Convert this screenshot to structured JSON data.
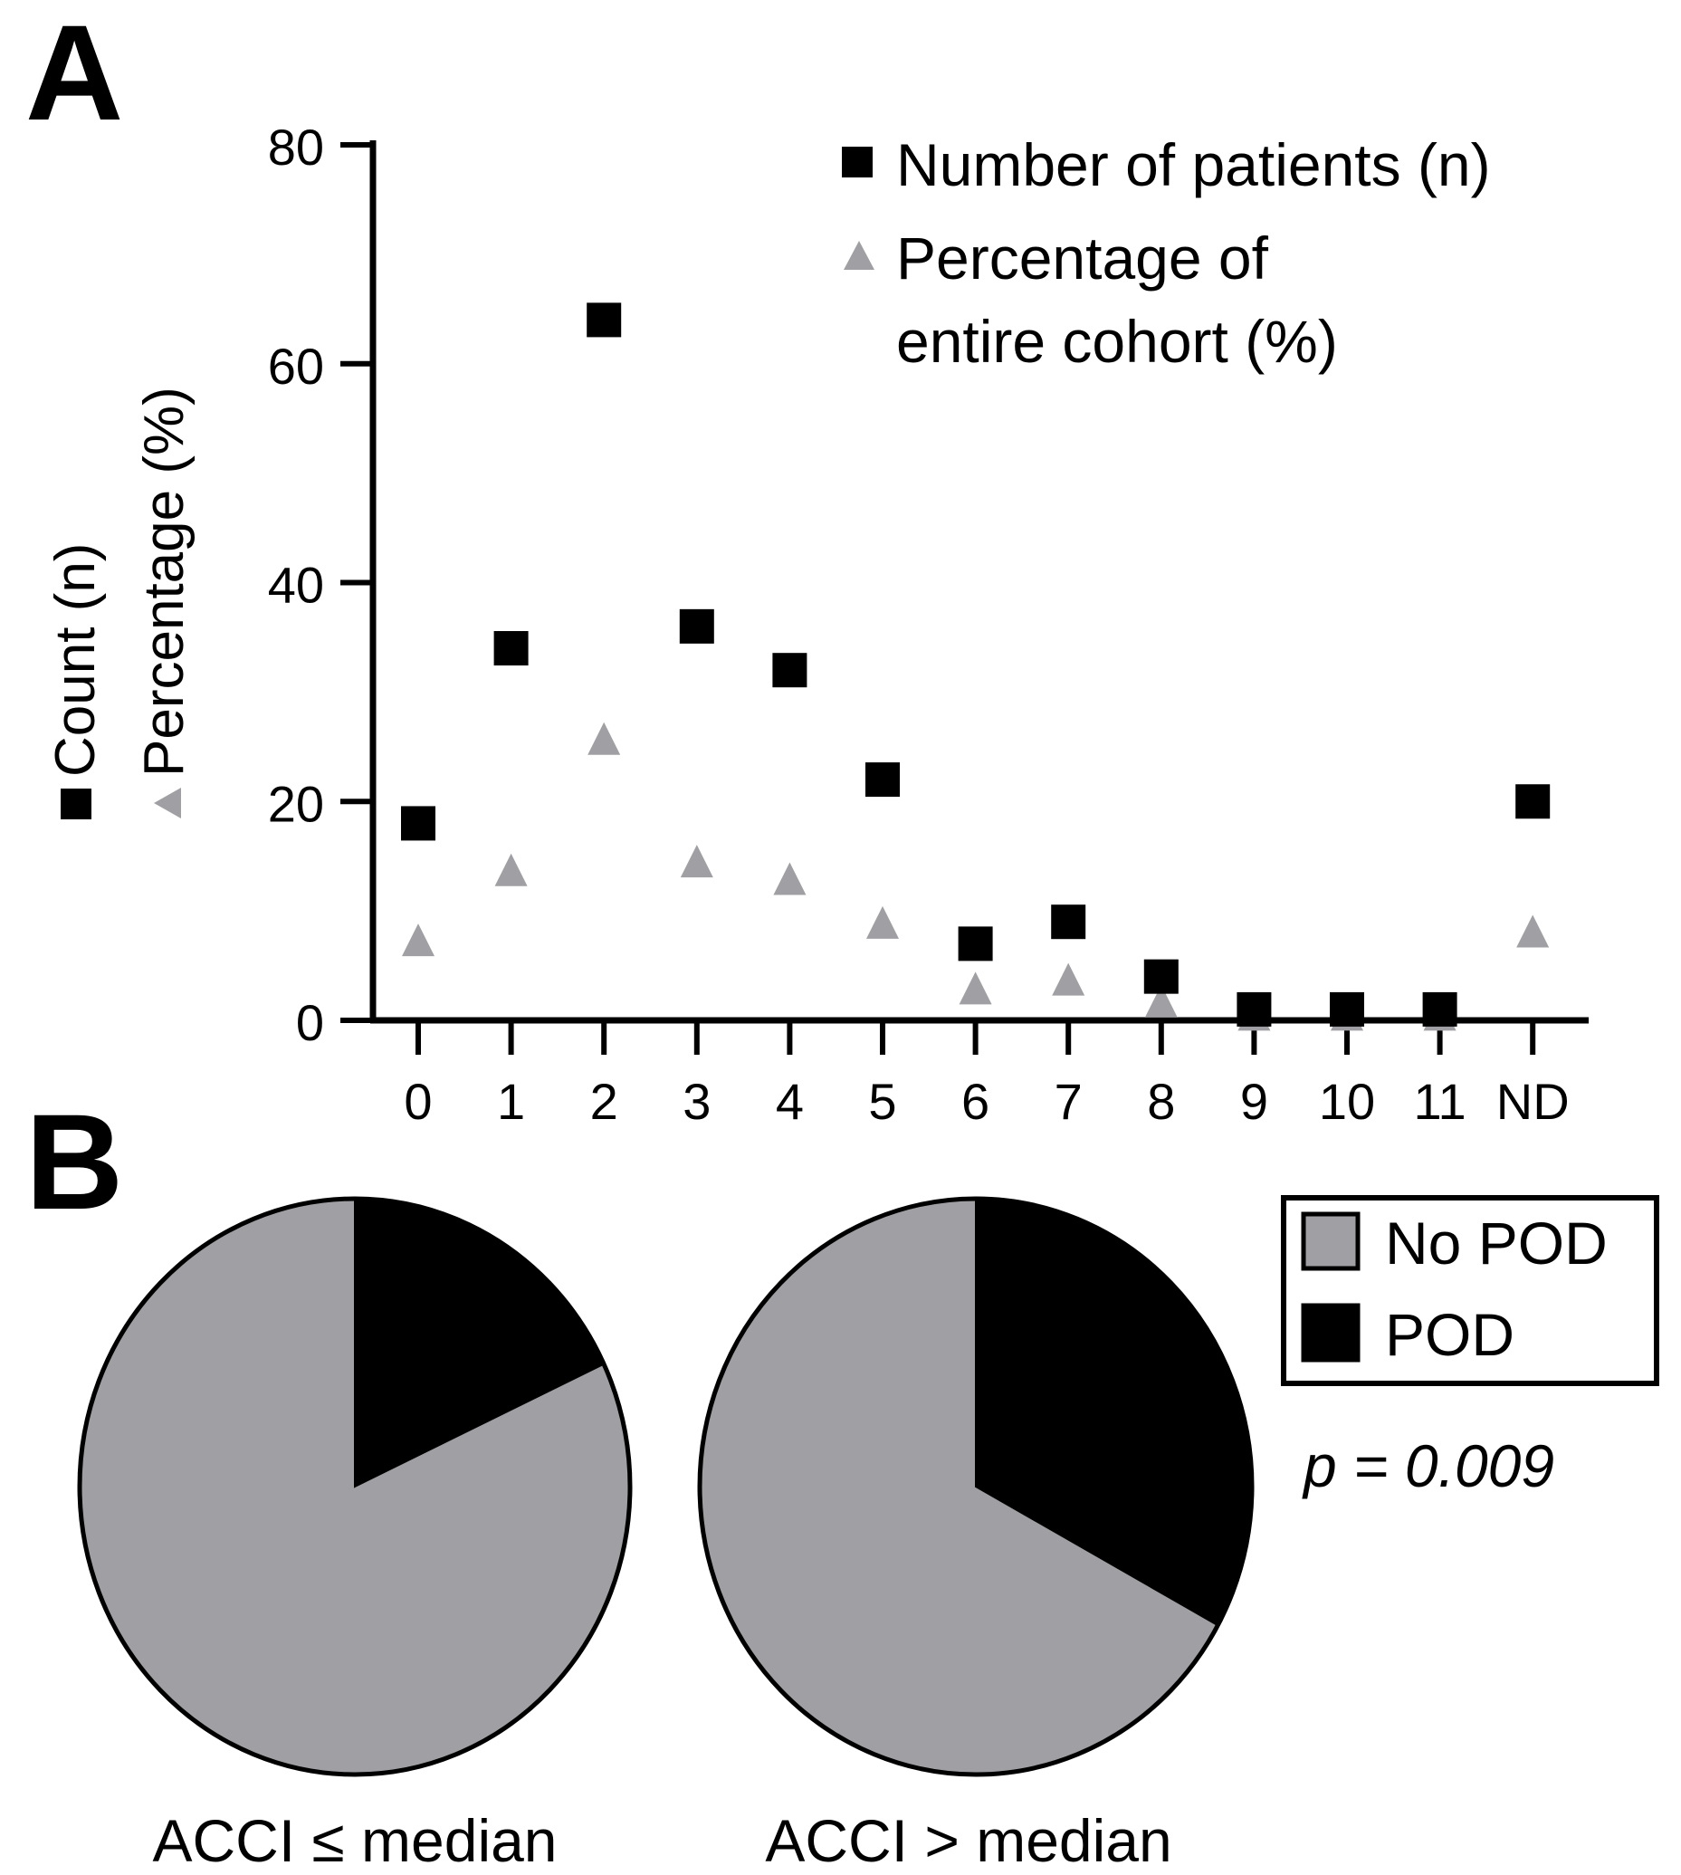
{
  "chart_data": [
    {
      "type": "scatter",
      "panel_label": "A",
      "ylabel_line1": "Count (n)",
      "ylabel_line2": "Percentage (%)",
      "ylim": [
        0,
        80
      ],
      "yticks": [
        "0",
        "20",
        "40",
        "60",
        "80"
      ],
      "categories": [
        "0",
        "1",
        "2",
        "3",
        "4",
        "5",
        "6",
        "7",
        "8",
        "9",
        "10",
        "11",
        "ND"
      ],
      "legend": {
        "position": "top-right",
        "entry_1": "Number of patients (n)",
        "entry_2_line1": "Percentage of",
        "entry_2_line2": "entire cohort (%)"
      },
      "series": [
        {
          "name": "Number of patients (n)",
          "marker": "square",
          "color": "#000000",
          "values": [
            18,
            34,
            64,
            36,
            32,
            22,
            7,
            9,
            4,
            1,
            1,
            1,
            20
          ]
        },
        {
          "name": "Percentage of entire cohort (%)",
          "marker": "triangle",
          "color": "#a0a0a4",
          "values": [
            7.2,
            13.6,
            25.6,
            14.4,
            12.8,
            8.8,
            2.8,
            3.6,
            1.6,
            0.4,
            0.4,
            0.4,
            8.0
          ]
        }
      ]
    },
    {
      "type": "pie",
      "panel_label": "B",
      "charts": [
        {
          "label": "ACCI ≤ median",
          "slices": [
            {
              "name": "No POD",
              "value": 82
            },
            {
              "name": "POD",
              "value": 18
            }
          ]
        },
        {
          "label": "ACCI > median",
          "slices": [
            {
              "name": "No POD",
              "value": 67
            },
            {
              "name": "POD",
              "value": 33
            }
          ]
        }
      ],
      "legend": {
        "position": "top-right",
        "entries": [
          "No POD",
          "POD"
        ]
      },
      "colors": {
        "No POD": "#a0a0a4",
        "POD": "#000000"
      },
      "p_value": "p = 0.009"
    }
  ]
}
